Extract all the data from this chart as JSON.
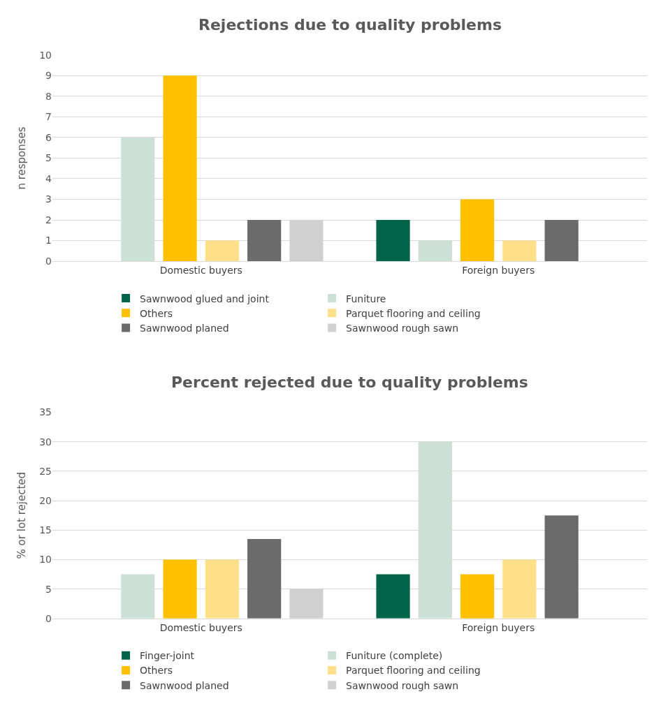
{
  "chart_data": [
    {
      "type": "bar",
      "title": "Rejections due to quality problems",
      "ylabel": "n responses",
      "categories": [
        "Domestic buyers",
        "Foreign buyers"
      ],
      "ylim": [
        0,
        10
      ],
      "yticks": [
        0,
        1,
        2,
        3,
        4,
        5,
        6,
        7,
        8,
        9,
        10
      ],
      "grid": "y",
      "legend": "bottom",
      "series": [
        {
          "name": "Sawnwood glued and joint",
          "color": "#006449",
          "values": [
            null,
            2
          ]
        },
        {
          "name": "Funiture",
          "color": "#cce0d8",
          "values": [
            6,
            1
          ]
        },
        {
          "name": "Others",
          "color": "#ffc000",
          "values": [
            9,
            3
          ]
        },
        {
          "name": "Parquet flooring and ceiling",
          "color": "#ffe08a",
          "values": [
            1,
            1
          ]
        },
        {
          "name": "Sawnwood planed",
          "color": "#6b6b6b",
          "values": [
            2,
            2
          ]
        },
        {
          "name": "Sawnwood rough sawn",
          "color": "#d0d0d0",
          "values": [
            2,
            null
          ]
        }
      ]
    },
    {
      "type": "bar",
      "title": "Percent rejected due to quality problems",
      "ylabel": "% or lot rejected",
      "categories": [
        "Domestic buyers",
        "Foreign buyers"
      ],
      "ylim": [
        0,
        35
      ],
      "yticks": [
        0,
        5,
        10,
        15,
        20,
        25,
        30,
        35
      ],
      "grid": "y",
      "legend": "bottom",
      "series": [
        {
          "name": "Finger-joint",
          "color": "#006449",
          "values": [
            null,
            7.5
          ]
        },
        {
          "name": "Funiture (complete)",
          "color": "#cce0d8",
          "values": [
            7.5,
            30
          ]
        },
        {
          "name": "Others",
          "color": "#ffc000",
          "values": [
            10,
            7.5
          ]
        },
        {
          "name": "Parquet flooring and ceiling",
          "color": "#ffe08a",
          "values": [
            10,
            10
          ]
        },
        {
          "name": "Sawnwood planed",
          "color": "#6b6b6b",
          "values": [
            13.5,
            17.5
          ]
        },
        {
          "name": "Sawnwood rough sawn",
          "color": "#d0d0d0",
          "values": [
            5,
            null
          ]
        }
      ]
    }
  ]
}
